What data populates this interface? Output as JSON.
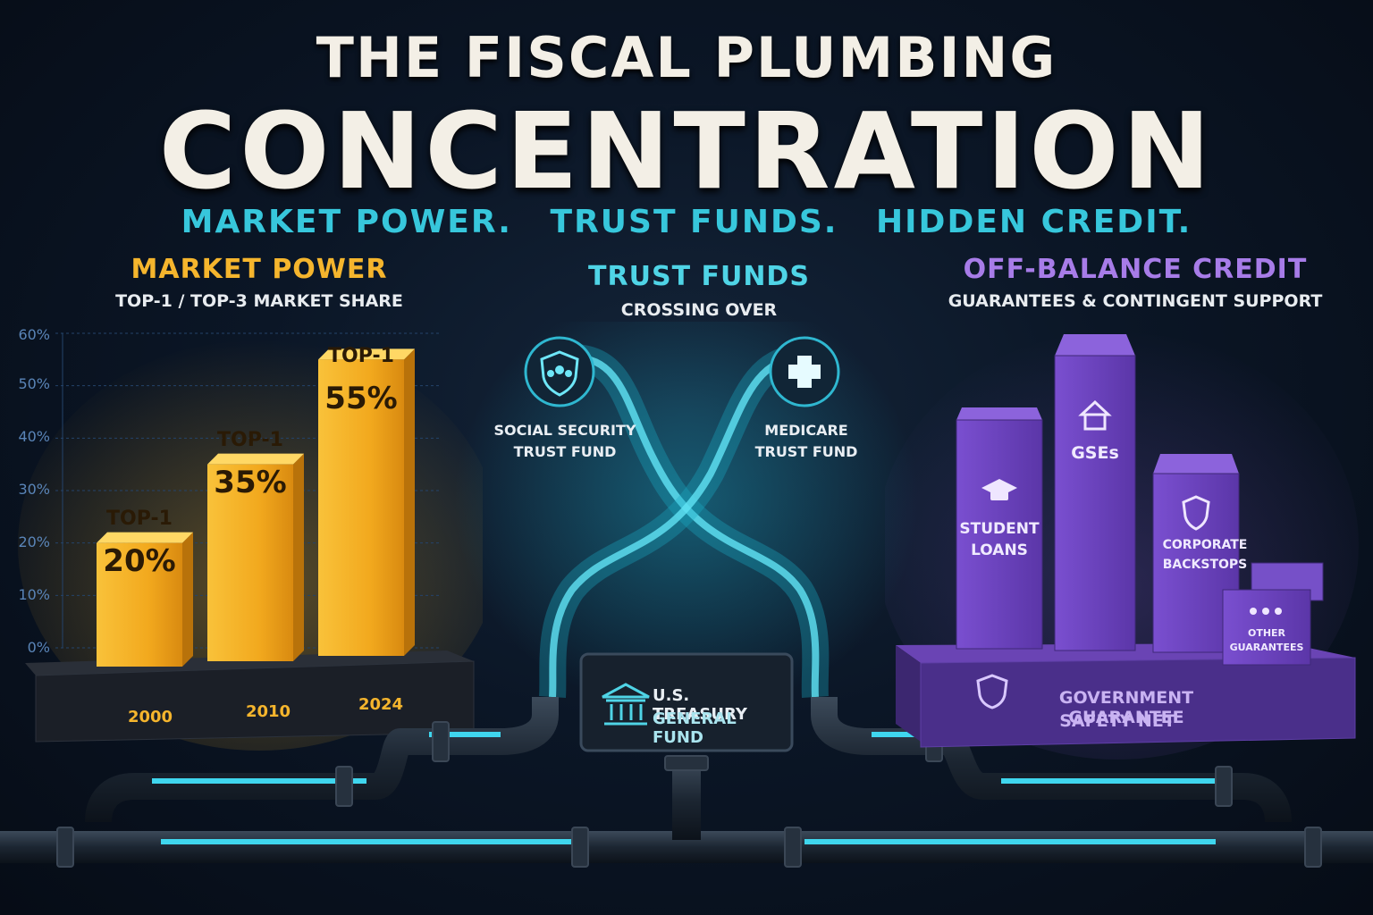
{
  "title_line1": "THE FISCAL PLUMBING",
  "title_line2": "CONCENTRATION",
  "tagline": [
    "MARKET POWER.",
    "TRUST FUNDS.",
    "HIDDEN CREDIT."
  ],
  "market": {
    "title": "MARKET POWER",
    "subtitle": "TOP-1 / TOP-3 MARKET SHARE",
    "ticks": [
      "60%",
      "50%",
      "40%",
      "30%",
      "20%",
      "10%",
      "0%"
    ],
    "bars": [
      {
        "label": "TOP-1",
        "value_text": "20%",
        "year": "2000"
      },
      {
        "label": "TOP-1",
        "value_text": "35%",
        "year": "2010"
      },
      {
        "label": "TOP-1",
        "value_text": "55%",
        "year": "2024"
      }
    ]
  },
  "trust": {
    "title": "TRUST FUNDS",
    "subtitle": "CROSSING OVER",
    "left_line1": "SOCIAL SECURITY",
    "left_line2": "TRUST FUND",
    "right_line1": "MEDICARE",
    "right_line2": "TRUST FUND",
    "treasury_line1": "U.S. TREASURY",
    "treasury_line2": "GENERAL FUND"
  },
  "credit": {
    "title": "OFF-BALANCE CREDIT",
    "subtitle": "GUARANTEES & CONTINGENT SUPPORT",
    "student_line1": "STUDENT",
    "student_line2": "LOANS",
    "gses": "GSEs",
    "corp_line1": "CORPORATE",
    "corp_line2": "BACKSTOPS",
    "other_line1": "OTHER",
    "other_line2": "GUARANTEES",
    "base_line1": "GOVERNMENT GUARANTEE",
    "base_line2": "SAFETY NET"
  },
  "chart_data": {
    "type": "bar",
    "categories": [
      "2000",
      "2010",
      "2024"
    ],
    "values": [
      20,
      35,
      55
    ],
    "ylim": [
      0,
      60
    ],
    "title": "MARKET POWER",
    "ylabel": ""
  },
  "colors": {
    "gold": "#f5b52d",
    "cyan": "#37c7dc",
    "purple": "#8a5cd6",
    "background": "#0b1626"
  }
}
